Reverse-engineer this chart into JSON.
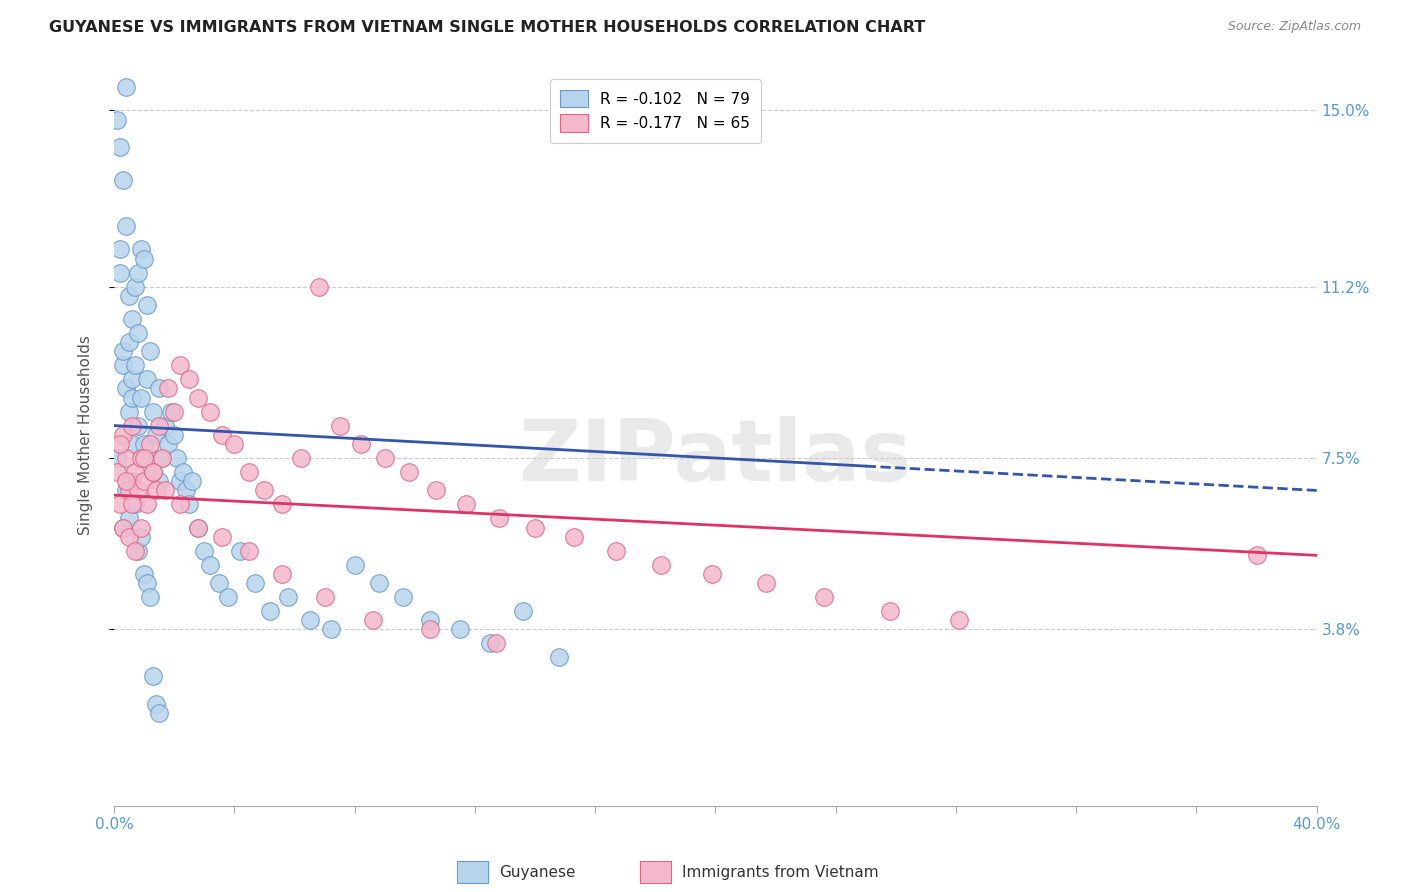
{
  "title": "GUYANESE VS IMMIGRANTS FROM VIETNAM SINGLE MOTHER HOUSEHOLDS CORRELATION CHART",
  "source": "Source: ZipAtlas.com",
  "ylabel": "Single Mother Households",
  "ytick_vals": [
    0.038,
    0.075,
    0.112,
    0.15
  ],
  "ytick_labels": [
    "3.8%",
    "7.5%",
    "11.2%",
    "15.0%"
  ],
  "xlim": [
    0.0,
    0.4
  ],
  "ylim": [
    0.0,
    0.16
  ],
  "legend_label1": "R = -0.102   N = 79",
  "legend_label2": "R = -0.177   N = 65",
  "series1_label": "Guyanese",
  "series2_label": "Immigrants from Vietnam",
  "series1_color": "#b8d4ec",
  "series2_color": "#f4b8cc",
  "series1_edge": "#6699cc",
  "series2_edge": "#dd6688",
  "line1_color": "#3355aa",
  "line2_color": "#dd3366",
  "line1_start_y": 0.082,
  "line1_end_y": 0.068,
  "line2_start_y": 0.067,
  "line2_end_y": 0.054,
  "watermark": "ZIPatlas",
  "title_color": "#222222",
  "right_tick_color": "#5599cc",
  "grid_color": "#cccccc",
  "background_color": "#ffffff",
  "guyanese_x": [
    0.001,
    0.002,
    0.002,
    0.003,
    0.003,
    0.003,
    0.004,
    0.004,
    0.004,
    0.005,
    0.005,
    0.005,
    0.006,
    0.006,
    0.006,
    0.006,
    0.007,
    0.007,
    0.008,
    0.008,
    0.008,
    0.009,
    0.009,
    0.01,
    0.01,
    0.011,
    0.011,
    0.012,
    0.012,
    0.013,
    0.013,
    0.014,
    0.015,
    0.015,
    0.016,
    0.017,
    0.018,
    0.019,
    0.02,
    0.021,
    0.022,
    0.023,
    0.024,
    0.025,
    0.026,
    0.028,
    0.03,
    0.032,
    0.035,
    0.038,
    0.042,
    0.047,
    0.052,
    0.058,
    0.065,
    0.072,
    0.08,
    0.088,
    0.096,
    0.105,
    0.115,
    0.125,
    0.136,
    0.148,
    0.001,
    0.002,
    0.003,
    0.004,
    0.005,
    0.006,
    0.007,
    0.008,
    0.009,
    0.01,
    0.011,
    0.012,
    0.013,
    0.014,
    0.015
  ],
  "guyanese_y": [
    0.075,
    0.142,
    0.12,
    0.095,
    0.098,
    0.135,
    0.09,
    0.125,
    0.155,
    0.1,
    0.11,
    0.085,
    0.092,
    0.105,
    0.088,
    0.078,
    0.112,
    0.095,
    0.115,
    0.102,
    0.082,
    0.12,
    0.088,
    0.118,
    0.078,
    0.108,
    0.092,
    0.098,
    0.075,
    0.085,
    0.072,
    0.08,
    0.09,
    0.07,
    0.075,
    0.082,
    0.078,
    0.085,
    0.08,
    0.075,
    0.07,
    0.072,
    0.068,
    0.065,
    0.07,
    0.06,
    0.055,
    0.052,
    0.048,
    0.045,
    0.055,
    0.048,
    0.042,
    0.045,
    0.04,
    0.038,
    0.052,
    0.048,
    0.045,
    0.04,
    0.038,
    0.035,
    0.042,
    0.032,
    0.148,
    0.115,
    0.06,
    0.068,
    0.062,
    0.07,
    0.065,
    0.055,
    0.058,
    0.05,
    0.048,
    0.045,
    0.028,
    0.022,
    0.02
  ],
  "vietnam_x": [
    0.001,
    0.002,
    0.003,
    0.004,
    0.005,
    0.006,
    0.007,
    0.008,
    0.009,
    0.01,
    0.011,
    0.012,
    0.013,
    0.014,
    0.015,
    0.016,
    0.018,
    0.02,
    0.022,
    0.025,
    0.028,
    0.032,
    0.036,
    0.04,
    0.045,
    0.05,
    0.056,
    0.062,
    0.068,
    0.075,
    0.082,
    0.09,
    0.098,
    0.107,
    0.117,
    0.128,
    0.14,
    0.153,
    0.167,
    0.182,
    0.199,
    0.217,
    0.236,
    0.258,
    0.281,
    0.003,
    0.005,
    0.007,
    0.01,
    0.013,
    0.017,
    0.022,
    0.028,
    0.036,
    0.045,
    0.056,
    0.07,
    0.086,
    0.105,
    0.127,
    0.002,
    0.004,
    0.006,
    0.009,
    0.38
  ],
  "vietnam_y": [
    0.072,
    0.065,
    0.08,
    0.075,
    0.068,
    0.082,
    0.072,
    0.068,
    0.075,
    0.07,
    0.065,
    0.078,
    0.072,
    0.068,
    0.082,
    0.075,
    0.09,
    0.085,
    0.095,
    0.092,
    0.088,
    0.085,
    0.08,
    0.078,
    0.072,
    0.068,
    0.065,
    0.075,
    0.112,
    0.082,
    0.078,
    0.075,
    0.072,
    0.068,
    0.065,
    0.062,
    0.06,
    0.058,
    0.055,
    0.052,
    0.05,
    0.048,
    0.045,
    0.042,
    0.04,
    0.06,
    0.058,
    0.055,
    0.075,
    0.072,
    0.068,
    0.065,
    0.06,
    0.058,
    0.055,
    0.05,
    0.045,
    0.04,
    0.038,
    0.035,
    0.078,
    0.07,
    0.065,
    0.06,
    0.054
  ]
}
